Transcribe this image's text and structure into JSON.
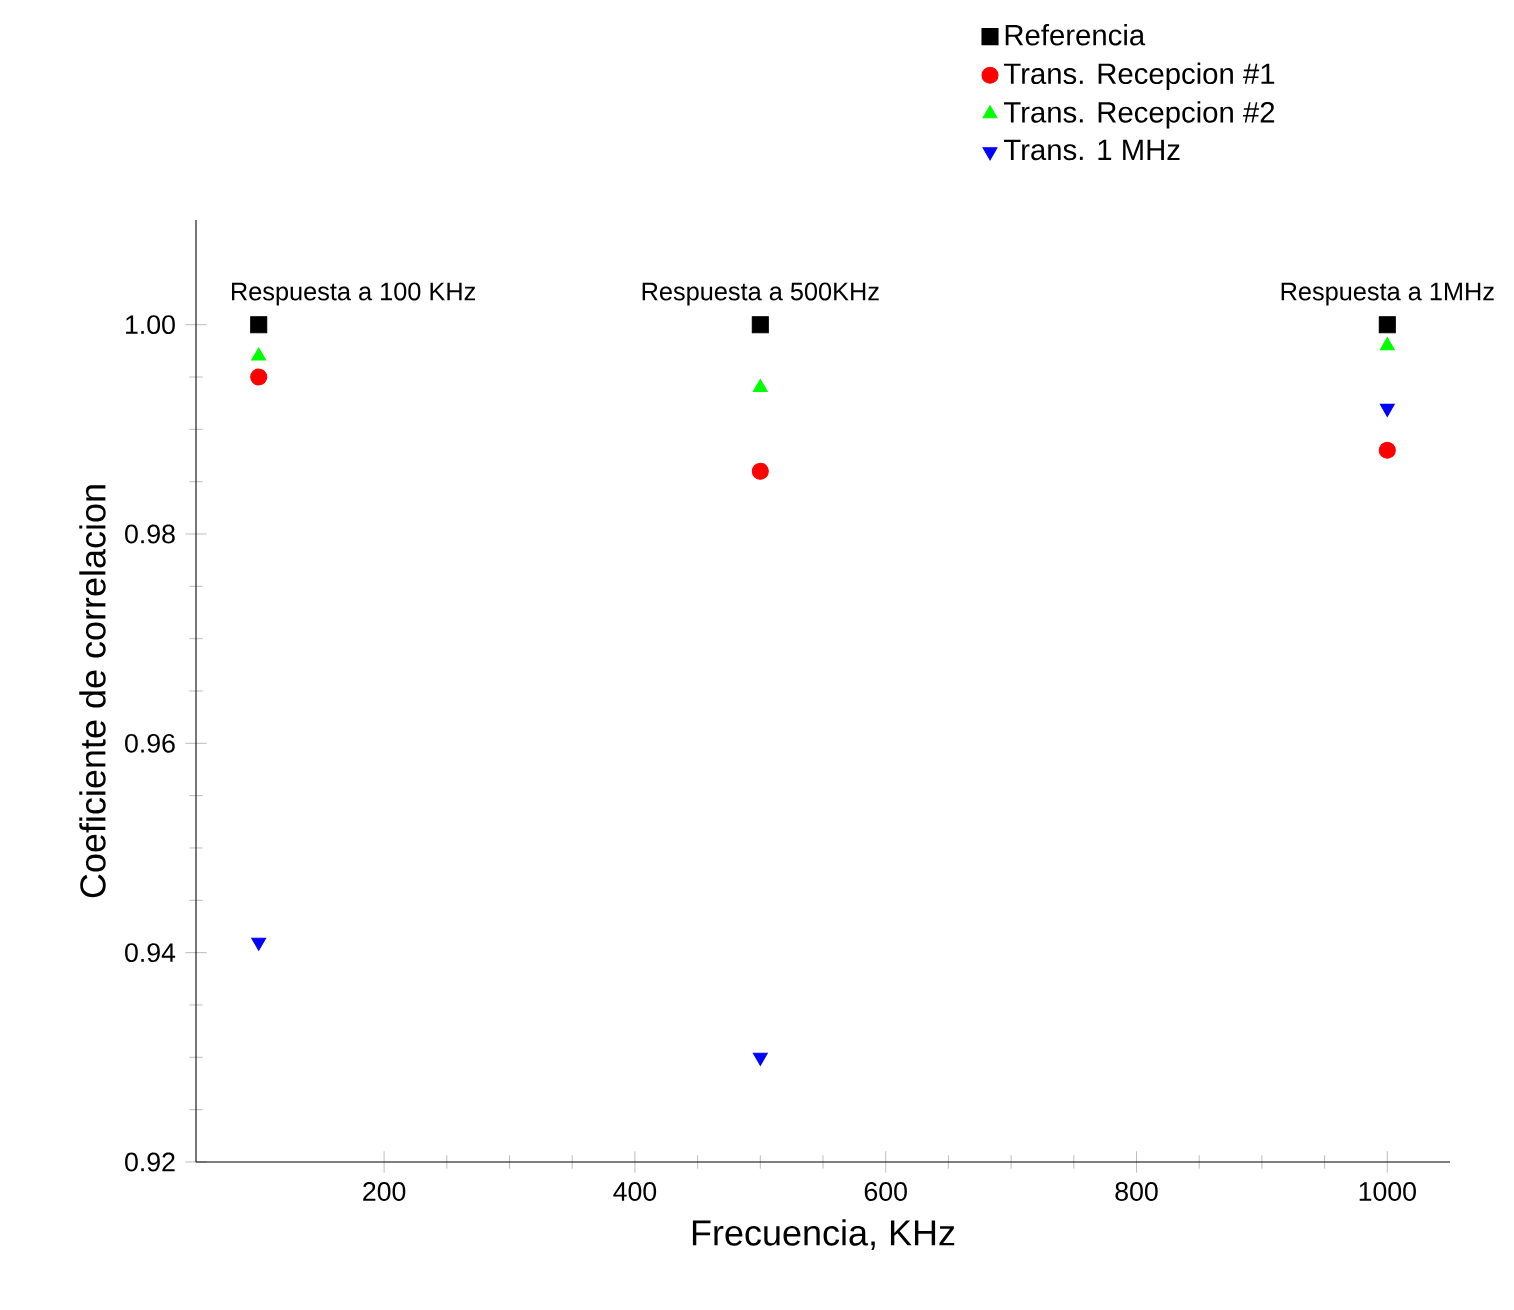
{
  "chart_data": {
    "type": "scatter",
    "xlabel": "Frecuencia, KHz",
    "ylabel": "Coeficiente de correlacion",
    "x": [
      100,
      500,
      1000
    ],
    "series": [
      {
        "name": "Referencia",
        "color": "#000000",
        "marker": "square",
        "values": [
          1.0,
          1.0,
          1.0
        ]
      },
      {
        "name": "Trans. Recepcion #1",
        "color": "#ff0000",
        "marker": "circle",
        "values": [
          0.995,
          0.986,
          0.988
        ]
      },
      {
        "name": "Trans. Recepcion #2",
        "color": "#00ff00",
        "marker": "triangle",
        "values": [
          0.997,
          0.994,
          0.998
        ]
      },
      {
        "name": "Trans. 1 MHz",
        "color": "#0000ff",
        "marker": "triangle down",
        "values": [
          0.941,
          0.93,
          0.992
        ]
      }
    ],
    "annotations": [
      {
        "text": "Respuesta a 100 KHz",
        "x": 100,
        "y": 1.0
      },
      {
        "text": "Respuesta a 500KHz",
        "x": 500,
        "y": 1.0
      },
      {
        "text": "Respuesta a 1MHz",
        "x": 1000,
        "y": 1.0
      }
    ],
    "xlim": [
      50,
      1050
    ],
    "xticks": [
      200,
      400,
      600,
      800,
      1000
    ],
    "ylim": [
      0.92,
      1.01
    ],
    "yticks": [
      0.92,
      0.94,
      0.96,
      0.98,
      {
        "value": 1.0,
        "label": "1.00"
      }
    ],
    "grid": false,
    "legend": "top right"
  }
}
